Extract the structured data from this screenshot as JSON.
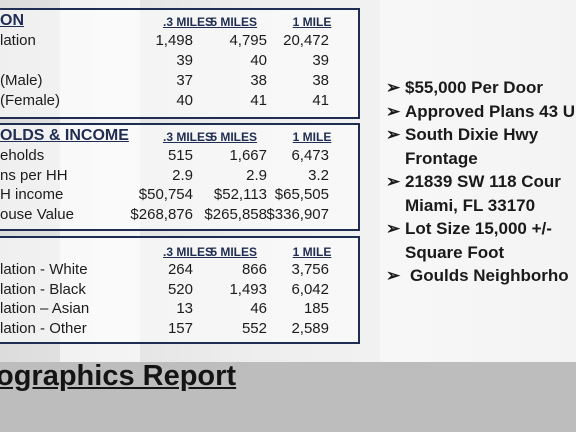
{
  "tables": [
    {
      "title": "ON",
      "columns": [
        ".3 MILES",
        ".5 MILES",
        "1 MILE"
      ],
      "rows": [
        {
          "label": "lation",
          "values": [
            "1,498",
            "4,795",
            "20,472"
          ]
        },
        {
          "values": [
            "39",
            "40",
            "39"
          ]
        },
        {
          "label": "(Male)",
          "values": [
            "37",
            "38",
            "38"
          ]
        },
        {
          "label": "(Female)",
          "values": [
            "40",
            "41",
            "41"
          ]
        }
      ]
    },
    {
      "title": "OLDS & INCOME",
      "columns": [
        ".3 MILES",
        ".5 MILES",
        "1 MILE"
      ],
      "rows": [
        {
          "label": "eholds",
          "values": [
            "515",
            "1,667",
            "6,473"
          ]
        },
        {
          "label": "ns per HH",
          "values": [
            "2.9",
            "2.9",
            "3.2"
          ]
        },
        {
          "label": "H income",
          "values": [
            "$50,754",
            "$52,113",
            "$65,505"
          ]
        },
        {
          "label": "ouse Value",
          "values": [
            "$268,876",
            "$265,858",
            "$336,907"
          ]
        }
      ]
    },
    {
      "columns": [
        ".3 MILES",
        ".5 MILES",
        "1 MILE"
      ],
      "rows": [
        {
          "label": "lation - White",
          "values": [
            "264",
            "866",
            "3,756"
          ]
        },
        {
          "label": "lation - Black",
          "values": [
            "520",
            "1,493",
            "6,042"
          ]
        },
        {
          "label": "lation – Asian",
          "values": [
            "13",
            "46",
            "185"
          ]
        },
        {
          "label": "lation - Other",
          "values": [
            "157",
            "552",
            "2,589"
          ]
        }
      ]
    }
  ],
  "bullets": [
    {
      "lines": [
        "$55,000 Per Door"
      ]
    },
    {
      "lines": [
        "Approved Plans 43 U"
      ]
    },
    {
      "lines": [
        "South Dixie Hwy",
        "Frontage"
      ]
    },
    {
      "lines": [
        "21839 SW 118 Cour",
        "Miami, FL 33170"
      ]
    },
    {
      "lines": [
        "Lot Size 15,000 +/-",
        "Square Foot"
      ]
    },
    {
      "lines": [
        "Goulds Neighborho"
      ]
    }
  ],
  "footer": {
    "title": "ographics Report"
  }
}
